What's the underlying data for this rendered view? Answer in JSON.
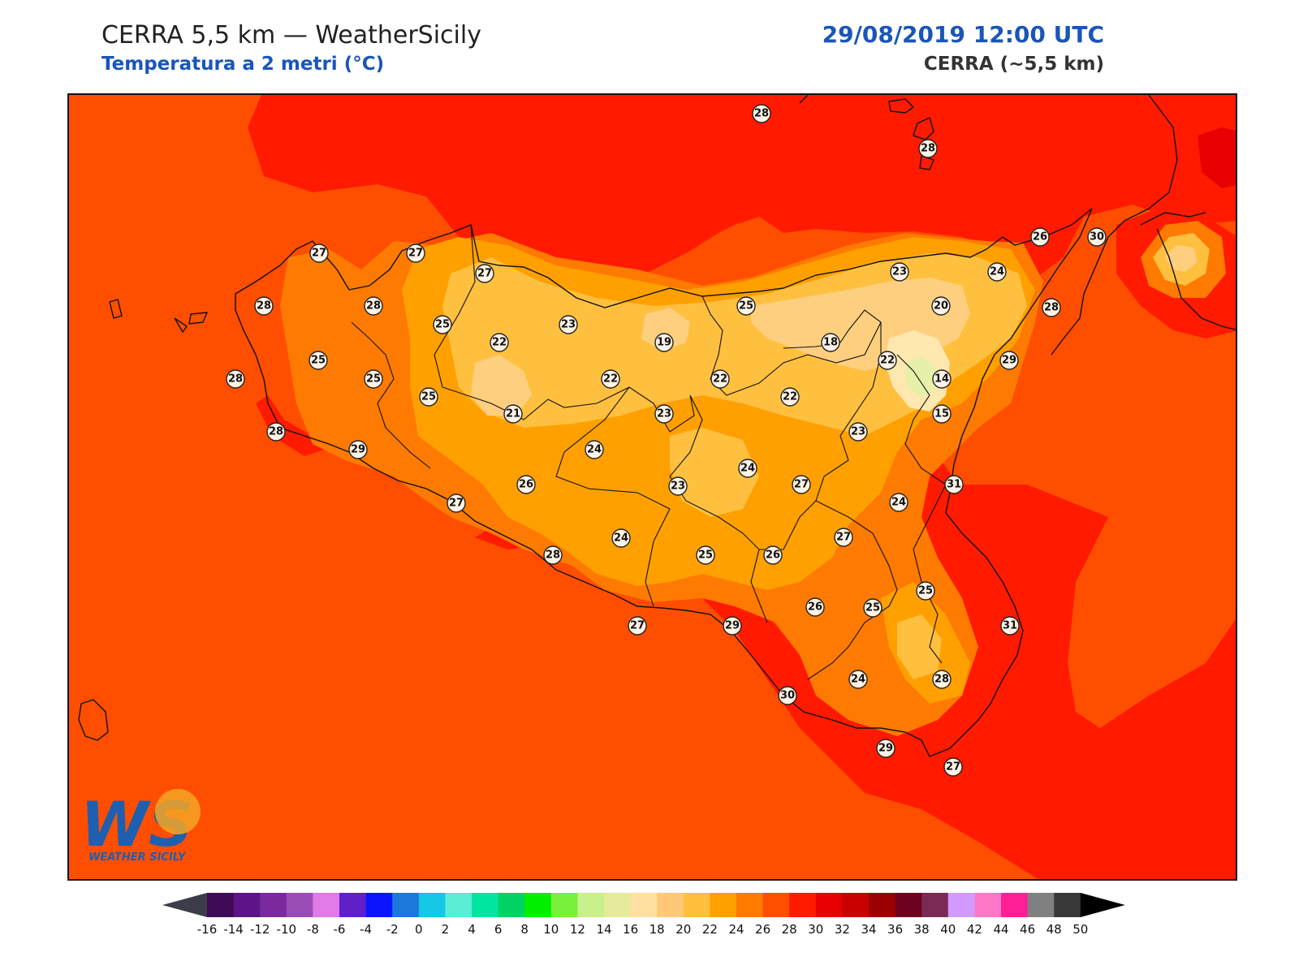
{
  "header": {
    "title_left": "CERRA 5,5 km — WeatherSicily",
    "subtitle_left": "Temperatura a 2 metri (°C)",
    "title_right": "29/08/2019 12:00 UTC",
    "subtitle_right": "CERRA (~5,5 km)"
  },
  "logo": {
    "text": "WEATHER SICILY",
    "letters": "WS"
  },
  "colors": {
    "sea": "#ff4e00",
    "hot": "#ff1a00",
    "land_24": "#ff7a00",
    "land_22": "#ffa000",
    "land_20": "#ffc040",
    "land_18": "#ffcf80",
    "etna_16": "#ffe7b0",
    "etna_14": "#e6f0a8"
  },
  "stations": [
    {
      "v": "28"
    },
    {
      "v": "28"
    },
    {
      "v": "26"
    },
    {
      "v": "30"
    },
    {
      "v": "27"
    },
    {
      "v": "27"
    },
    {
      "v": "27"
    },
    {
      "v": "23"
    },
    {
      "v": "24"
    },
    {
      "v": "28"
    },
    {
      "v": "28"
    },
    {
      "v": "25"
    },
    {
      "v": "23"
    },
    {
      "v": "25"
    },
    {
      "v": "20"
    },
    {
      "v": "28"
    },
    {
      "v": "22"
    },
    {
      "v": "19"
    },
    {
      "v": "18"
    },
    {
      "v": "22"
    },
    {
      "v": "29"
    },
    {
      "v": "25"
    },
    {
      "v": "28"
    },
    {
      "v": "25"
    },
    {
      "v": "22"
    },
    {
      "v": "22"
    },
    {
      "v": "22"
    },
    {
      "v": "14"
    },
    {
      "v": "25"
    },
    {
      "v": "21"
    },
    {
      "v": "23"
    },
    {
      "v": "15"
    },
    {
      "v": "28"
    },
    {
      "v": "23"
    },
    {
      "v": "29"
    },
    {
      "v": "24"
    },
    {
      "v": "26"
    },
    {
      "v": "23"
    },
    {
      "v": "24"
    },
    {
      "v": "31"
    },
    {
      "v": "27"
    },
    {
      "v": "27"
    },
    {
      "v": "24"
    },
    {
      "v": "27"
    },
    {
      "v": "28"
    },
    {
      "v": "24"
    },
    {
      "v": "25"
    },
    {
      "v": "26"
    },
    {
      "v": "25"
    },
    {
      "v": "26"
    },
    {
      "v": "27"
    },
    {
      "v": "29"
    },
    {
      "v": "31"
    },
    {
      "v": "25"
    },
    {
      "v": "24"
    },
    {
      "v": "28"
    },
    {
      "v": "30"
    },
    {
      "v": "29"
    },
    {
      "v": "27"
    }
  ],
  "colorbar": {
    "labels": [
      "-16",
      "-14",
      "-12",
      "-10",
      "-8",
      "-6",
      "-4",
      "-2",
      "0",
      "2",
      "4",
      "6",
      "8",
      "10",
      "12",
      "14",
      "16",
      "18",
      "20",
      "22",
      "24",
      "26",
      "28",
      "30",
      "32",
      "34",
      "36",
      "38",
      "40",
      "42",
      "44",
      "46",
      "48",
      "50"
    ],
    "colors": [
      "#3f0a56",
      "#5c1487",
      "#7a2a9e",
      "#9a4cb5",
      "#e07be8",
      "#6020c8",
      "#0a14ff",
      "#1e78dc",
      "#14c8e6",
      "#5aeed6",
      "#00e6a0",
      "#00d264",
      "#00f000",
      "#78f03c",
      "#c8f08c",
      "#e6eb9c",
      "#ffe0a0",
      "#ffc878",
      "#ffc040",
      "#ffa000",
      "#ff7a00",
      "#ff4e00",
      "#ff1a00",
      "#e60000",
      "#c80000",
      "#9a0000",
      "#6e0020",
      "#7a2a55",
      "#d29aff",
      "#ff78c8",
      "#ff1e96",
      "#808080",
      "#383838"
    ],
    "under_color": "#3c3c4a",
    "over_color": "#000000"
  }
}
